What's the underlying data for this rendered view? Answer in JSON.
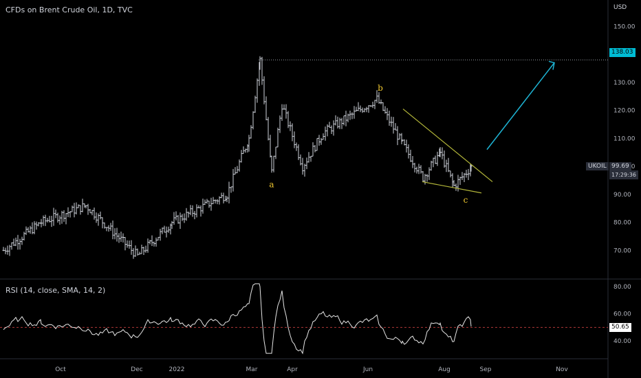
{
  "header": {
    "title": "CFDs on Brent Crude Oil, 1D, TVC",
    "currency": "USD"
  },
  "rsi": {
    "title": "RSI (14, close, SMA, 14, 2)",
    "value": "50.65"
  },
  "tags": {
    "target": "138.03",
    "symbol": "UKOIL",
    "price": "99.69",
    "countdown": "17:29:36"
  },
  "colors": {
    "background": "#000000",
    "bars": "#d1d4dc",
    "wedge": "#b5b83a",
    "arrow": "#1eb4d4",
    "wave_label": "#f0c830",
    "target_line": "#9aa0a6",
    "rsi_mid": "#b23a3a"
  },
  "wave_labels": [
    "a",
    "b",
    "c"
  ],
  "chart_data": [
    {
      "type": "line",
      "name": "price",
      "ylim": [
        60,
        155
      ],
      "y_ticks": [
        70,
        80,
        90,
        100,
        110,
        120,
        130,
        140,
        150
      ],
      "y_tick_labels": [
        "70.00",
        "80.00",
        "90.00",
        "100.00",
        "110.00",
        "120.00",
        "130.00",
        "140.00",
        "150.00"
      ],
      "x_labels": [
        "Oct",
        "Dec",
        "2022",
        "Mar",
        "Apr",
        "Jun",
        "Aug",
        "Sep",
        "Nov"
      ],
      "target_level": 138.03,
      "last_price": 99.69,
      "approx_closes": [
        {
          "x": "Sep",
          "y": 70
        },
        {
          "x": "Oct",
          "y": 80
        },
        {
          "x": "Oct",
          "y": 86
        },
        {
          "x": "Dec",
          "y": 68
        },
        {
          "x": "2022",
          "y": 80
        },
        {
          "x": "2022",
          "y": 90
        },
        {
          "x": "Mar",
          "y": 110
        },
        {
          "x": "Mar",
          "y": 138
        },
        {
          "x": "Mar",
          "y": 98
        },
        {
          "x": "Mar",
          "y": 122
        },
        {
          "x": "Apr",
          "y": 100
        },
        {
          "x": "Apr",
          "y": 112
        },
        {
          "x": "Jun",
          "y": 124
        },
        {
          "x": "Jun",
          "y": 108
        },
        {
          "x": "Aug",
          "y": 96
        },
        {
          "x": "Aug",
          "y": 105
        },
        {
          "x": "Aug",
          "y": 93
        },
        {
          "x": "Aug",
          "y": 99.69
        }
      ]
    },
    {
      "type": "line",
      "name": "RSI",
      "ylim": [
        28,
        85
      ],
      "y_ticks": [
        40,
        60,
        80
      ],
      "y_tick_labels": [
        "40.00",
        "60.00",
        "80.00"
      ],
      "midline": 50,
      "last_value": 50.65
    }
  ]
}
